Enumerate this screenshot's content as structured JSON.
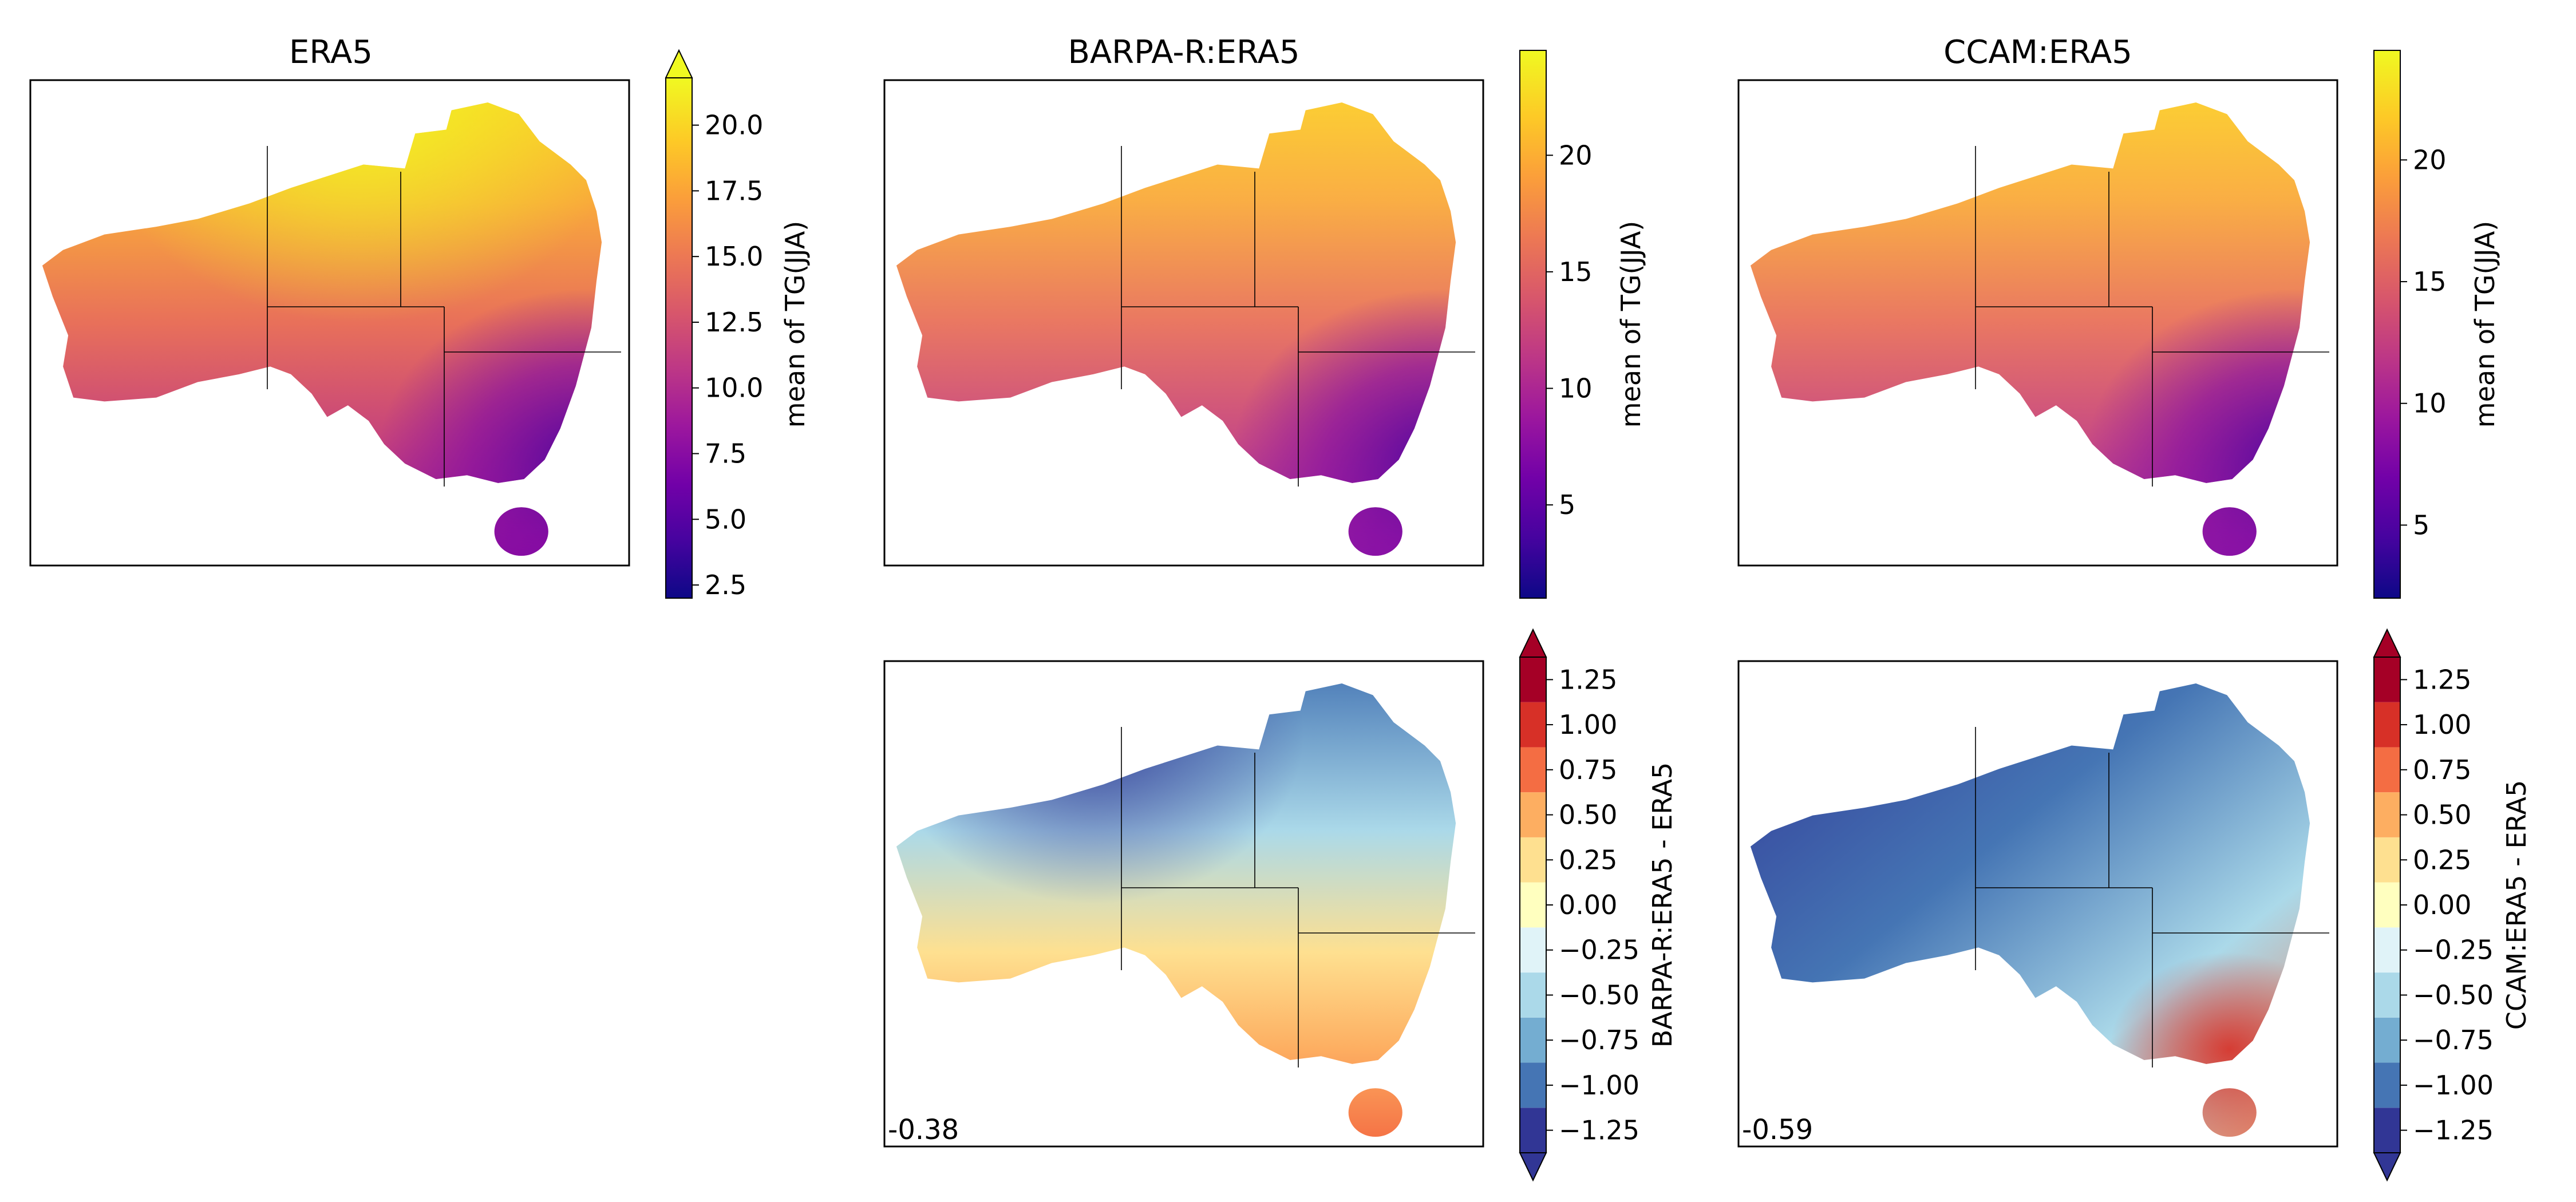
{
  "colors": {
    "plasma": [
      "#0d0887",
      "#46039f",
      "#7201a8",
      "#9c179e",
      "#bd3786",
      "#d8576b",
      "#ed7953",
      "#fb9f3a",
      "#fdca26",
      "#f0f921"
    ],
    "diverging": [
      "#313695",
      "#4575b4",
      "#74add1",
      "#abd9e9",
      "#e0f3f8",
      "#ffffbf",
      "#fee090",
      "#fdae61",
      "#f46d43",
      "#d73027",
      "#a50026"
    ],
    "frame": "#000000"
  },
  "chart_data": [
    {
      "type": "heatmap",
      "title": "ERA5",
      "colorbar_label": "mean of TG(JJA)",
      "colormap": "plasma",
      "range": [
        2.0,
        21.8
      ],
      "extend": "max",
      "ticks": [
        "2.5",
        "5.0",
        "7.5",
        "10.0",
        "12.5",
        "15.0",
        "17.5",
        "20.0"
      ]
    },
    {
      "type": "heatmap",
      "title": "BARPA-R:ERA5",
      "colorbar_label": "mean of TG(JJA)",
      "colormap": "plasma",
      "range": [
        1.0,
        24.5
      ],
      "extend": "neither",
      "ticks": [
        "5",
        "10",
        "15",
        "20"
      ]
    },
    {
      "type": "heatmap",
      "title": "CCAM:ERA5",
      "colorbar_label": "mean of TG(JJA)",
      "colormap": "plasma",
      "range": [
        2.0,
        24.5
      ],
      "extend": "neither",
      "ticks": [
        "5",
        "10",
        "15",
        "20"
      ]
    },
    {
      "type": "heatmap",
      "title": "",
      "colorbar_label": "BARPA-R:ERA5 - ERA5",
      "colormap": "RdYlBu_r",
      "range": [
        -1.375,
        1.375
      ],
      "extend": "both",
      "ticks": [
        "−1.25",
        "−1.00",
        "−0.75",
        "−0.50",
        "−0.25",
        "0.00",
        "0.25",
        "0.50",
        "0.75",
        "1.00",
        "1.25"
      ],
      "annotation": "-0.38"
    },
    {
      "type": "heatmap",
      "title": "",
      "colorbar_label": "CCAM:ERA5 - ERA5",
      "colormap": "RdYlBu_r",
      "range": [
        -1.375,
        1.375
      ],
      "extend": "both",
      "ticks": [
        "−1.25",
        "−1.00",
        "−0.75",
        "−0.50",
        "−0.25",
        "0.00",
        "0.25",
        "0.50",
        "0.75",
        "1.00",
        "1.25"
      ],
      "annotation": "-0.59"
    }
  ]
}
